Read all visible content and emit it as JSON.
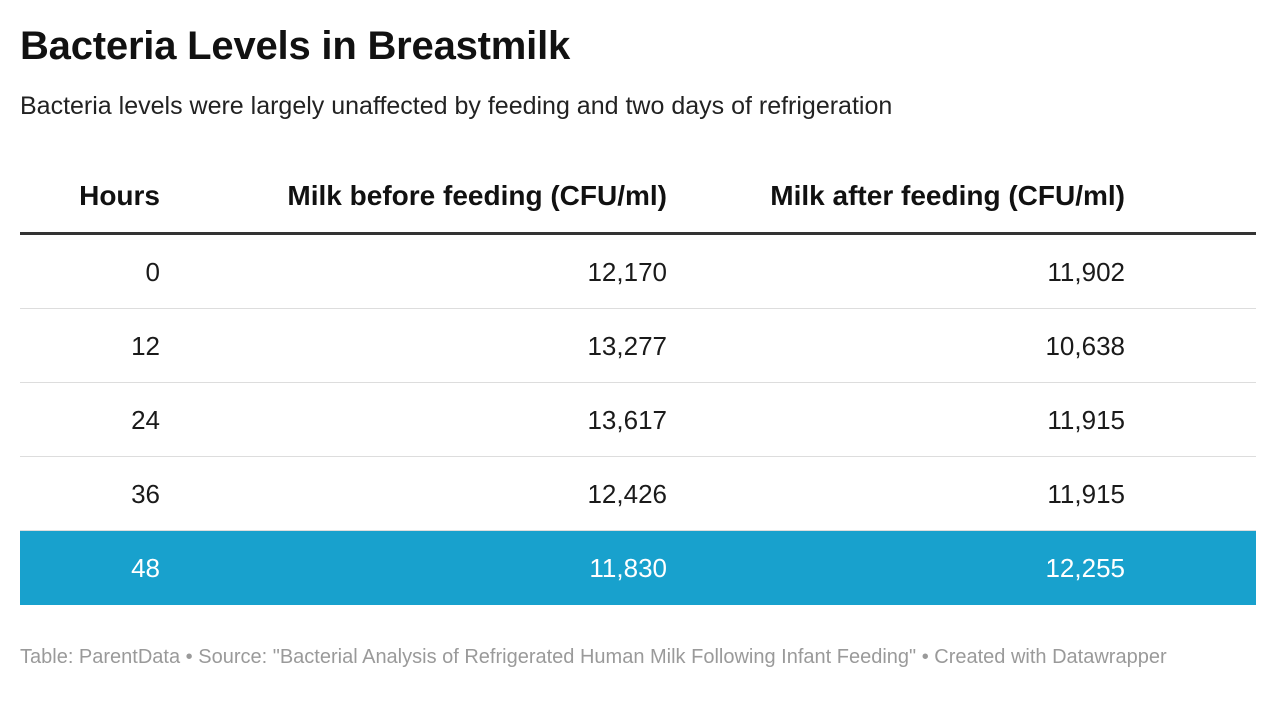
{
  "title": "Bacteria Levels in Breastmilk",
  "subtitle": "Bacteria levels were largely unaffected by feeding and two days of refrigeration",
  "chart_data": {
    "type": "table",
    "columns": [
      "Hours",
      "Milk before feeding (CFU/ml)",
      "Milk after feeding (CFU/ml)"
    ],
    "rows": [
      [
        "0",
        "12,170",
        "11,902"
      ],
      [
        "12",
        "13,277",
        "10,638"
      ],
      [
        "24",
        "13,617",
        "11,915"
      ],
      [
        "36",
        "12,426",
        "11,915"
      ],
      [
        "48",
        "11,830",
        "12,255"
      ]
    ],
    "highlighted_row": 4,
    "highlight_color": "#18a1cd"
  },
  "footer": {
    "credit": "Table: ParentData",
    "separator": "•",
    "source": "Source: \"Bacterial Analysis of Refrigerated Human Milk Following Infant Feeding\"",
    "created_with": "Created with Datawrapper"
  }
}
